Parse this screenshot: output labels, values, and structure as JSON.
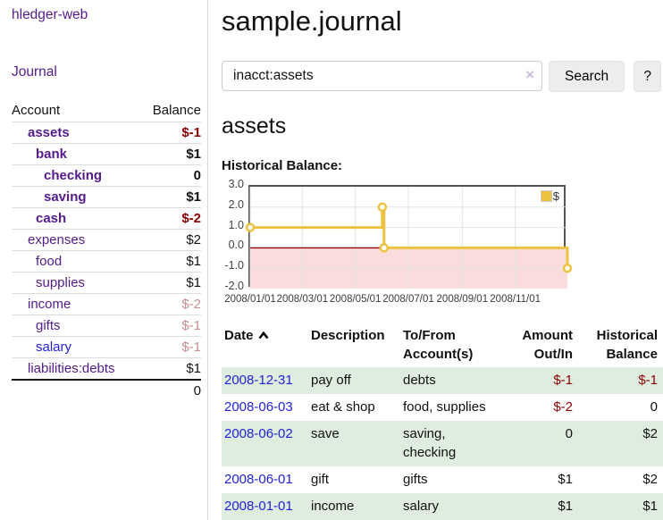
{
  "app": {
    "brand": "hledger-web",
    "journal_link": "Journal"
  },
  "sidebar": {
    "headers": {
      "account": "Account",
      "balance": "Balance"
    },
    "accounts": [
      {
        "name": "assets",
        "balance": "$-1",
        "level": 0,
        "bold": true,
        "balance_tone": "neg-strong"
      },
      {
        "name": "bank",
        "balance": "$1",
        "level": 1,
        "bold": true,
        "balance_tone": "plain"
      },
      {
        "name": "checking",
        "balance": "0",
        "level": 2,
        "bold": true,
        "balance_tone": "plain"
      },
      {
        "name": "saving",
        "balance": "$1",
        "level": 2,
        "bold": true,
        "balance_tone": "plain"
      },
      {
        "name": "cash",
        "balance": "$-2",
        "level": 1,
        "bold": true,
        "balance_tone": "neg-strong"
      },
      {
        "name": "expenses",
        "balance": "$2",
        "level": 0,
        "bold": false,
        "balance_tone": "plain"
      },
      {
        "name": "food",
        "balance": "$1",
        "level": 1,
        "bold": false,
        "balance_tone": "plain"
      },
      {
        "name": "supplies",
        "balance": "$1",
        "level": 1,
        "bold": false,
        "balance_tone": "plain"
      },
      {
        "name": "income",
        "balance": "$-2",
        "level": 0,
        "bold": false,
        "balance_tone": "neg-muted"
      },
      {
        "name": "gifts",
        "balance": "$-1",
        "level": 1,
        "bold": false,
        "balance_tone": "neg-muted"
      },
      {
        "name": "salary",
        "balance": "$-1",
        "level": 1,
        "bold": false,
        "balance_tone": "neg-muted",
        "link_tone": "blue"
      },
      {
        "name": "liabilities:debts",
        "balance": "$1",
        "level": 0,
        "bold": false,
        "balance_tone": "plain"
      }
    ],
    "total": "0"
  },
  "main": {
    "title": "sample.journal",
    "search": {
      "value": "inacct:assets",
      "clear_icon": "×",
      "search_button": "Search",
      "help_button": "?"
    },
    "account_heading": "assets",
    "section_label": "Historical Balance:"
  },
  "chart_data": {
    "type": "line",
    "step": true,
    "title": "Historical Balance",
    "series": [
      {
        "name": "$",
        "color": "#edc240",
        "points": [
          {
            "date": "2008-01-01",
            "value": 1
          },
          {
            "date": "2008-06-01",
            "value": 2
          },
          {
            "date": "2008-06-03",
            "value": 0
          },
          {
            "date": "2008-12-31",
            "value": -1
          }
        ]
      }
    ],
    "x_start": "2008-01-01",
    "x_end": "2008-12-31",
    "ylim": [
      -2,
      3
    ],
    "yticks": [
      "3.0",
      "2.0",
      "1.0",
      "0.0",
      "-1.0",
      "-2.0"
    ],
    "xticks": [
      {
        "label": "2008/01/01",
        "date": "2008-01-01"
      },
      {
        "label": "2008/03/01",
        "date": "2008-03-01"
      },
      {
        "label": "2008/05/01",
        "date": "2008-05-01"
      },
      {
        "label": "2008/07/01",
        "date": "2008-07-01"
      },
      {
        "label": "2008/09/01",
        "date": "2008-09-01"
      },
      {
        "label": "2008/11/01",
        "date": "2008-11-01"
      }
    ],
    "legend": {
      "label": "$",
      "position": "top-right"
    },
    "grid": true,
    "grid_color": "#e4e4e4",
    "negative_region_color": "#fbdcdc",
    "zero_line_color": "#8b0000"
  },
  "register": {
    "headers": {
      "date": "Date",
      "description": "Description",
      "accounts": "To/From Account(s)",
      "amount": "Amount Out/In",
      "balance": "Historical Balance"
    },
    "rows": [
      {
        "date": "2008-12-31",
        "description": "pay off",
        "accounts": "debts",
        "amount": "$-1",
        "balance": "$-1",
        "amount_tone": "neg",
        "balance_tone": "neg"
      },
      {
        "date": "2008-06-03",
        "description": "eat & shop",
        "accounts": "food, supplies",
        "amount": "$-2",
        "balance": "0",
        "amount_tone": "neg",
        "balance_tone": "plain"
      },
      {
        "date": "2008-06-02",
        "description": "save",
        "accounts": "saving, checking",
        "amount": "0",
        "balance": "$2",
        "amount_tone": "plain",
        "balance_tone": "plain"
      },
      {
        "date": "2008-06-01",
        "description": "gift",
        "accounts": "gifts",
        "amount": "$1",
        "balance": "$2",
        "amount_tone": "plain",
        "balance_tone": "plain"
      },
      {
        "date": "2008-01-01",
        "description": "income",
        "accounts": "salary",
        "amount": "$1",
        "balance": "$1",
        "amount_tone": "plain",
        "balance_tone": "plain"
      }
    ]
  }
}
